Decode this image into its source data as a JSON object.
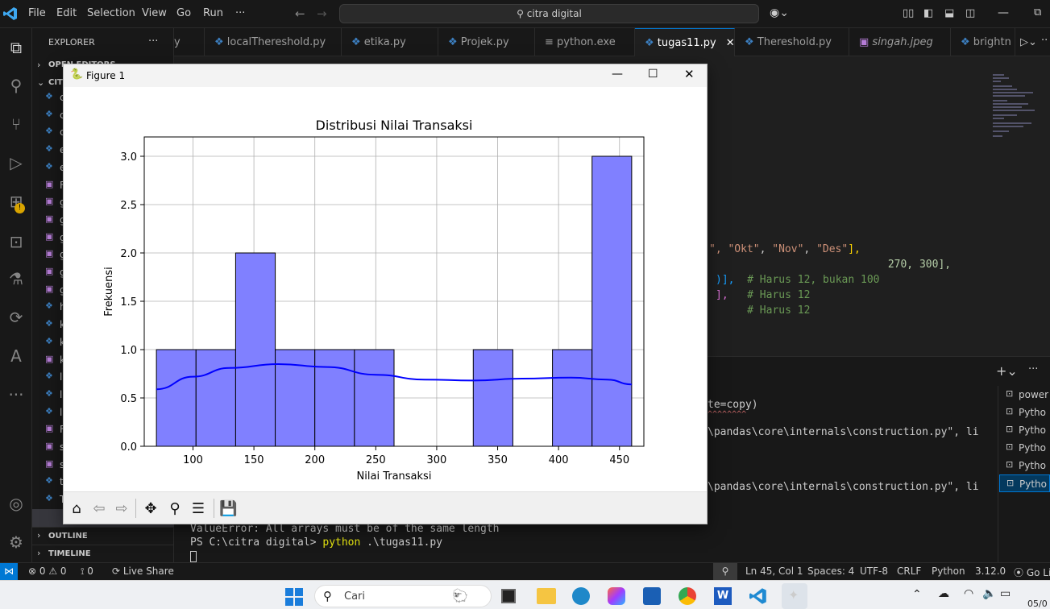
{
  "menu": [
    "File",
    "Edit",
    "Selection",
    "View",
    "Go",
    "Run",
    "···"
  ],
  "search": {
    "text": "citra digital"
  },
  "sidebar": {
    "header": "EXPLORER",
    "more": "···",
    "open_editors": "OPEN EDITORS",
    "folder": "CITI",
    "files": [
      "c",
      "c",
      "c",
      "e",
      "e",
      "F",
      "g",
      "g",
      "g",
      "g",
      "g",
      "g",
      "h",
      "k",
      "k",
      "k",
      "l",
      "l",
      "l",
      "F",
      "s",
      "s",
      "t",
      "T",
      "t"
    ],
    "outline": "OUTLINE",
    "timeline": "TIMELINE"
  },
  "tabs": [
    {
      "label": "y"
    },
    {
      "label": "localThereshold.py"
    },
    {
      "label": "etika.py"
    },
    {
      "label": "Projek.py"
    },
    {
      "label": "python.exe"
    },
    {
      "label": "tugas11.py",
      "active": true
    },
    {
      "label": "Thereshold.py"
    },
    {
      "label": "singah.jpeg"
    },
    {
      "label": "brightn"
    }
  ],
  "code": [
    {
      "a": "\", ",
      "b": "\"Okt\"",
      "c": ", ",
      "d": "\"Nov\"",
      "e": ", ",
      "f": "\"Des\"",
      "g": "],"
    },
    {
      "a": " 270, 300],"
    },
    {
      "a": ")],  ",
      "comment": "# Harus 12, bukan 100"
    },
    {
      "a": "],   ",
      "comment": "# Harus 12"
    },
    {
      "a": "     ",
      "comment": "# Harus 12"
    }
  ],
  "terminal": {
    "lines": [
      "te=copy)",
      "^^^^^^^^",
      "\\pandas\\core\\internals\\construction.py\", li",
      "\\pandas\\core\\internals\\construction.py\", li",
      "ValueError: All arrays must be of the same length"
    ],
    "prompt": "PS C:\\citra digital> ",
    "command": "python",
    "arg": " .\\tugas11.py",
    "sessions": [
      "power",
      "Pytho",
      "Pytho",
      "Pytho",
      "Pytho",
      "Pytho"
    ]
  },
  "status": {
    "errors": "0",
    "warnings": "0",
    "ports": "0",
    "live_share": "Live Share",
    "position": "Ln 45, Col 1",
    "spaces": "Spaces: 4",
    "encoding": "UTF-8",
    "eol": "CRLF",
    "language": "Python",
    "version": "3.12.0",
    "golive": "Go Liv"
  },
  "taskbar": {
    "search": "Cari",
    "clock": "05/0"
  },
  "figure": {
    "window_title": "Figure 1"
  },
  "chart_data": {
    "type": "bar",
    "title": "Distribusi Nilai Transaksi",
    "xlabel": "Nilai Transaksi",
    "ylabel": "Frekuensi",
    "xlim": [
      60,
      470
    ],
    "ylim": [
      0,
      3.2
    ],
    "xticks": [
      100,
      150,
      200,
      250,
      300,
      350,
      400,
      450
    ],
    "yticks": [
      0.0,
      0.5,
      1.0,
      1.5,
      2.0,
      2.5,
      3.0
    ],
    "grid": true,
    "bin_edges": [
      70,
      102.5,
      135,
      167.5,
      200,
      232.5,
      265,
      297.5,
      330,
      362.5,
      395,
      427.5,
      460
    ],
    "values": [
      1,
      1,
      2,
      1,
      1,
      1,
      0,
      0,
      1,
      0,
      1,
      3
    ],
    "bar_color": "#8080ff",
    "kde_color": "#0000ff",
    "kde": {
      "x": [
        70,
        100,
        130,
        170,
        210,
        250,
        290,
        330,
        370,
        410,
        440,
        460
      ],
      "y": [
        0.59,
        0.72,
        0.81,
        0.85,
        0.82,
        0.74,
        0.69,
        0.68,
        0.7,
        0.71,
        0.69,
        0.64
      ]
    }
  }
}
